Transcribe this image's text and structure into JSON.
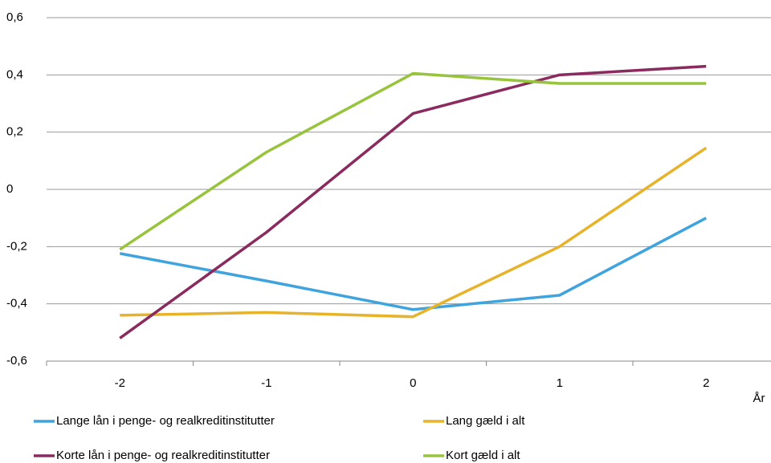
{
  "chart_data": {
    "type": "line",
    "categories": [
      "-2",
      "-1",
      "0",
      "1",
      "2"
    ],
    "x_label": "År",
    "series": [
      {
        "name": "Lange lån i penge- og realkreditinstitutter",
        "color": "#3fa4dd",
        "values": [
          -0.224,
          -0.32,
          -0.42,
          -0.37,
          -0.1
        ]
      },
      {
        "name": "Lang gæld i alt",
        "color": "#e6b32b",
        "values": [
          -0.44,
          -0.43,
          -0.445,
          -0.2,
          0.145
        ]
      },
      {
        "name": "Korte lån i penge- og realkreditinstitutter",
        "color": "#8b2a5e",
        "values": [
          -0.52,
          -0.15,
          0.265,
          0.4,
          0.43
        ]
      },
      {
        "name": "Kort gæld i alt",
        "color": "#97c43c",
        "values": [
          -0.21,
          0.13,
          0.405,
          0.37,
          0.37
        ]
      }
    ],
    "ylim": [
      -0.6,
      0.6
    ],
    "yticks": [
      {
        "value": -0.6,
        "label": "-0,6"
      },
      {
        "value": -0.4,
        "label": "-0,4"
      },
      {
        "value": -0.2,
        "label": "-0,2"
      },
      0,
      {
        "value": 0.2,
        "label": "0,2"
      },
      {
        "value": 0.4,
        "label": "0,4"
      },
      {
        "value": 0.6,
        "label": "0,6"
      }
    ],
    "grid": true,
    "legend": "bottom"
  }
}
